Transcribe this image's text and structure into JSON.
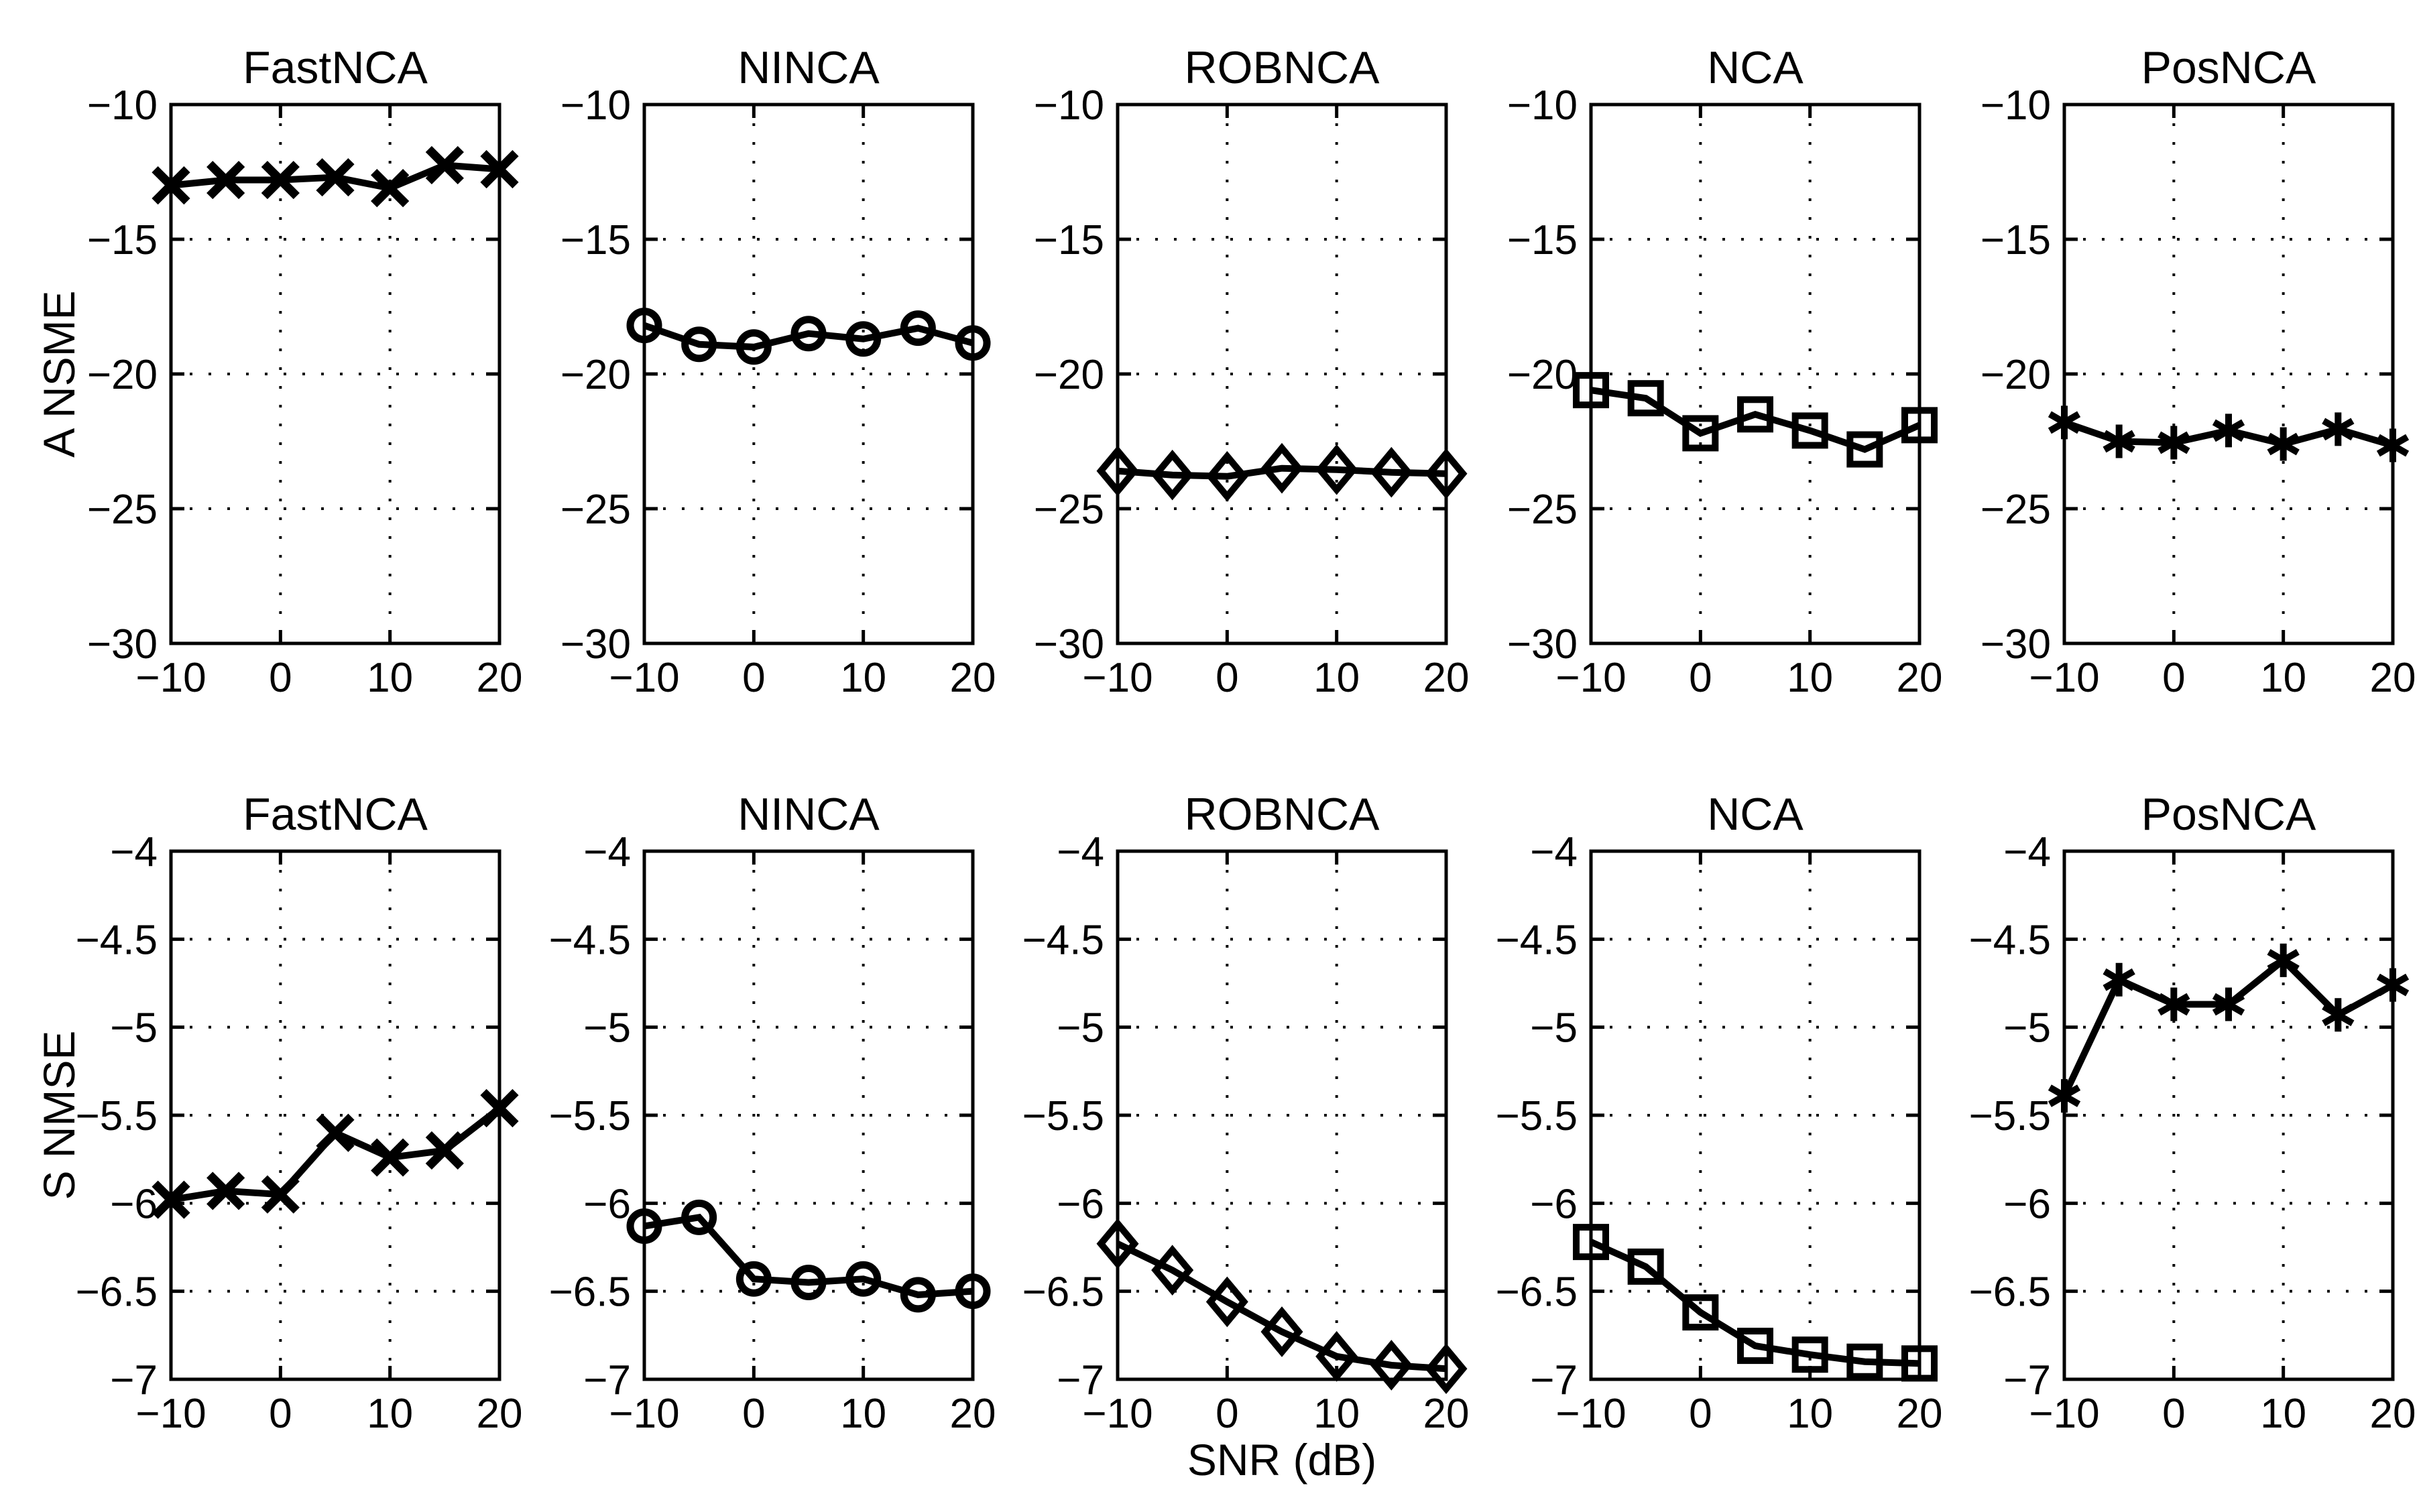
{
  "figure": {
    "background": "#ffffff",
    "ink": "#000000",
    "xlabel": "SNR (dB)",
    "snr_values": [
      -10,
      -5,
      0,
      5,
      10,
      15,
      20
    ],
    "x_axis": {
      "range": [
        -10,
        20
      ],
      "tick_vals": [
        -10,
        0,
        10,
        20
      ],
      "tick_labels": [
        "−10",
        "0",
        "10",
        "20"
      ],
      "grid_vals": [
        0,
        10
      ]
    },
    "row_axes": [
      {
        "ylabel": "A NSME",
        "range": [
          -30,
          -10
        ],
        "tick_vals": [
          -10,
          -15,
          -20,
          -25,
          -30
        ],
        "tick_labels": [
          "−10",
          "−15",
          "−20",
          "−25",
          "−30"
        ],
        "grid_vals": [
          -15,
          -20,
          -25
        ]
      },
      {
        "ylabel": "S NMSE",
        "range": [
          -7,
          -4
        ],
        "tick_vals": [
          -4,
          -4.5,
          -5,
          -5.5,
          -6,
          -6.5,
          -7
        ],
        "tick_labels": [
          "−4",
          "−4.5",
          "−5",
          "−5.5",
          "−6",
          "−6.5",
          "−7"
        ],
        "grid_vals": [
          -4.5,
          -5,
          -5.5,
          -6,
          -6.5
        ]
      }
    ],
    "column_titles": [
      "FastNCA",
      "NINCA",
      "ROBNCA",
      "NCA",
      "PosNCA"
    ],
    "grid_style": "dotted",
    "legend": "none"
  },
  "chart_data": [
    {
      "type": "line",
      "row": 0,
      "col": 0,
      "title": "FastNCA",
      "marker": "x",
      "x": [
        -10,
        -5,
        0,
        5,
        10,
        15,
        20
      ],
      "y": [
        -13.0,
        -12.8,
        -12.8,
        -12.7,
        -13.1,
        -12.25,
        -12.4
      ],
      "xlim": [
        -10,
        20
      ],
      "ylim": [
        -30,
        -10
      ],
      "xlabel": "",
      "ylabel": "A NSME"
    },
    {
      "type": "line",
      "row": 0,
      "col": 1,
      "title": "NINCA",
      "marker": "circle",
      "x": [
        -10,
        -5,
        0,
        5,
        10,
        15,
        20
      ],
      "y": [
        -18.2,
        -18.9,
        -19.0,
        -18.5,
        -18.7,
        -18.3,
        -18.85
      ],
      "xlim": [
        -10,
        20
      ],
      "ylim": [
        -30,
        -10
      ],
      "xlabel": "",
      "ylabel": "A NSME"
    },
    {
      "type": "line",
      "row": 0,
      "col": 2,
      "title": "ROBNCA",
      "marker": "diamond",
      "x": [
        -10,
        -5,
        0,
        5,
        10,
        15,
        20
      ],
      "y": [
        -23.6,
        -23.75,
        -23.8,
        -23.5,
        -23.55,
        -23.65,
        -23.7
      ],
      "xlim": [
        -10,
        20
      ],
      "ylim": [
        -30,
        -10
      ],
      "xlabel": "",
      "ylabel": "A NSME"
    },
    {
      "type": "line",
      "row": 0,
      "col": 3,
      "title": "NCA",
      "marker": "square",
      "x": [
        -10,
        -5,
        0,
        5,
        10,
        15,
        20
      ],
      "y": [
        -20.6,
        -20.9,
        -22.2,
        -21.5,
        -22.1,
        -22.8,
        -21.9
      ],
      "xlim": [
        -10,
        20
      ],
      "ylim": [
        -30,
        -10
      ],
      "xlabel": "",
      "ylabel": "A NSME"
    },
    {
      "type": "line",
      "row": 0,
      "col": 4,
      "title": "PosNCA",
      "marker": "asterisk",
      "x": [
        -10,
        -5,
        0,
        5,
        10,
        15,
        20
      ],
      "y": [
        -21.8,
        -22.5,
        -22.55,
        -22.1,
        -22.6,
        -22.05,
        -22.65
      ],
      "xlim": [
        -10,
        20
      ],
      "ylim": [
        -30,
        -10
      ],
      "xlabel": "",
      "ylabel": "A NSME"
    },
    {
      "type": "line",
      "row": 1,
      "col": 0,
      "title": "FastNCA",
      "marker": "x",
      "x": [
        -10,
        -5,
        0,
        5,
        10,
        15,
        20
      ],
      "y": [
        -5.98,
        -5.93,
        -5.95,
        -5.6,
        -5.74,
        -5.7,
        -5.46
      ],
      "xlim": [
        -10,
        20
      ],
      "ylim": [
        -7,
        -4
      ],
      "xlabel": "",
      "ylabel": "S NMSE"
    },
    {
      "type": "line",
      "row": 1,
      "col": 1,
      "title": "NINCA",
      "marker": "circle",
      "x": [
        -10,
        -5,
        0,
        5,
        10,
        15,
        20
      ],
      "y": [
        -6.13,
        -6.08,
        -6.43,
        -6.45,
        -6.43,
        -6.52,
        -6.5
      ],
      "xlim": [
        -10,
        20
      ],
      "ylim": [
        -7,
        -4
      ],
      "xlabel": "",
      "ylabel": "S NMSE"
    },
    {
      "type": "line",
      "row": 1,
      "col": 2,
      "title": "ROBNCA",
      "marker": "diamond",
      "x": [
        -10,
        -5,
        0,
        5,
        10,
        15,
        20
      ],
      "y": [
        -6.23,
        -6.38,
        -6.56,
        -6.73,
        -6.87,
        -6.92,
        -6.94
      ],
      "xlim": [
        -10,
        20
      ],
      "ylim": [
        -7,
        -4
      ],
      "xlabel": "SNR (dB)",
      "ylabel": "S NMSE"
    },
    {
      "type": "line",
      "row": 1,
      "col": 3,
      "title": "NCA",
      "marker": "square",
      "x": [
        -10,
        -5,
        0,
        5,
        10,
        15,
        20
      ],
      "y": [
        -6.22,
        -6.36,
        -6.62,
        -6.81,
        -6.86,
        -6.9,
        -6.91
      ],
      "xlim": [
        -10,
        20
      ],
      "ylim": [
        -7,
        -4
      ],
      "xlabel": "",
      "ylabel": "S NMSE"
    },
    {
      "type": "line",
      "row": 1,
      "col": 4,
      "title": "PosNCA",
      "marker": "asterisk",
      "x": [
        -10,
        -5,
        0,
        5,
        10,
        15,
        20
      ],
      "y": [
        -5.39,
        -4.73,
        -4.87,
        -4.87,
        -4.62,
        -4.93,
        -4.76
      ],
      "xlim": [
        -10,
        20
      ],
      "ylim": [
        -7,
        -4
      ],
      "xlabel": "",
      "ylabel": "S NMSE"
    }
  ]
}
